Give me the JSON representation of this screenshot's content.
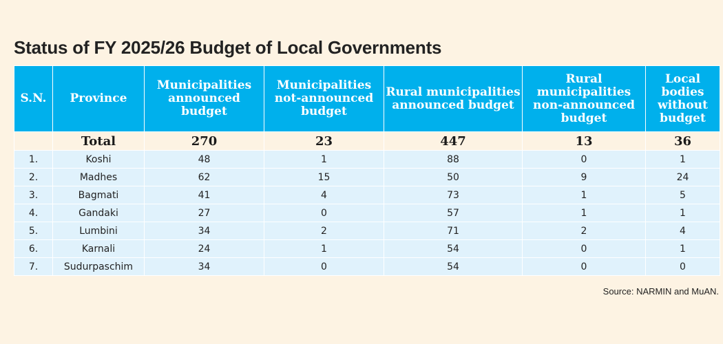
{
  "title": "Status of FY 2025/26 Budget of Local Governments",
  "table": {
    "headers": [
      "S.N.",
      "Province",
      "Municipalities announced budget",
      "Municipalities not-announced budget",
      "Rural municipalities announced budget",
      "Rural municipalities non-announced budget",
      "Local bodies without budget"
    ],
    "total": {
      "label": "Total",
      "values": [
        "270",
        "23",
        "447",
        "13",
        "36"
      ]
    },
    "rows": [
      {
        "sn": "1.",
        "province": "Koshi",
        "values": [
          "48",
          "1",
          "88",
          "0",
          "1"
        ]
      },
      {
        "sn": "2.",
        "province": "Madhes",
        "values": [
          "62",
          "15",
          "50",
          "9",
          "24"
        ]
      },
      {
        "sn": "3.",
        "province": "Bagmati",
        "values": [
          "41",
          "4",
          "73",
          "1",
          "5"
        ]
      },
      {
        "sn": "4.",
        "province": "Gandaki",
        "values": [
          "27",
          "0",
          "57",
          "1",
          "1"
        ]
      },
      {
        "sn": "5.",
        "province": "Lumbini",
        "values": [
          "34",
          "2",
          "71",
          "2",
          "4"
        ]
      },
      {
        "sn": "6.",
        "province": "Karnali",
        "values": [
          "24",
          "1",
          "54",
          "0",
          "1"
        ]
      },
      {
        "sn": "7.",
        "province": "Sudurpaschim",
        "values": [
          "34",
          "0",
          "54",
          "0",
          "0"
        ]
      }
    ]
  },
  "source": "Source: NARMIN and MuAN.",
  "colors": {
    "background": "#fdf3e3",
    "header": "#00b0ec",
    "row": "#e0f2fc"
  }
}
